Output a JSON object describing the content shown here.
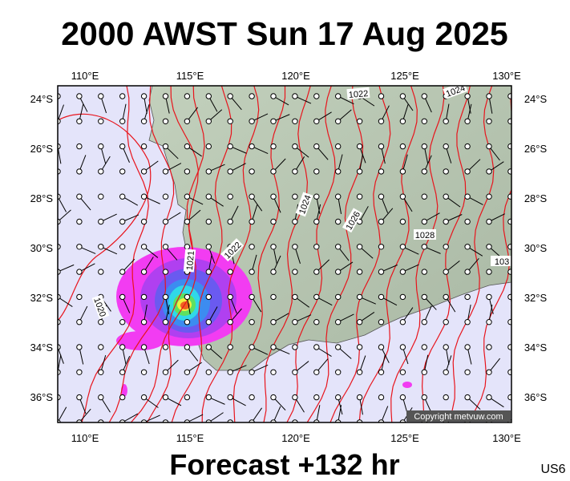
{
  "header": {
    "title": "2000 AWST Sun 17 Aug 2025"
  },
  "footer": {
    "title": "Forecast +132 hr",
    "code": "US6"
  },
  "axes": {
    "lon_labels": [
      "110°E",
      "115°E",
      "120°E",
      "125°E",
      "130°E"
    ],
    "lat_labels": [
      "24°S",
      "26°S",
      "28°S",
      "30°S",
      "32°S",
      "34°S",
      "36°S"
    ]
  },
  "isobar_labels": [
    "1022",
    "1024",
    "1024",
    "1026",
    "1028",
    "103",
    "1022",
    "1021",
    "1020"
  ],
  "copyright": "Copyright metvuw.com"
}
